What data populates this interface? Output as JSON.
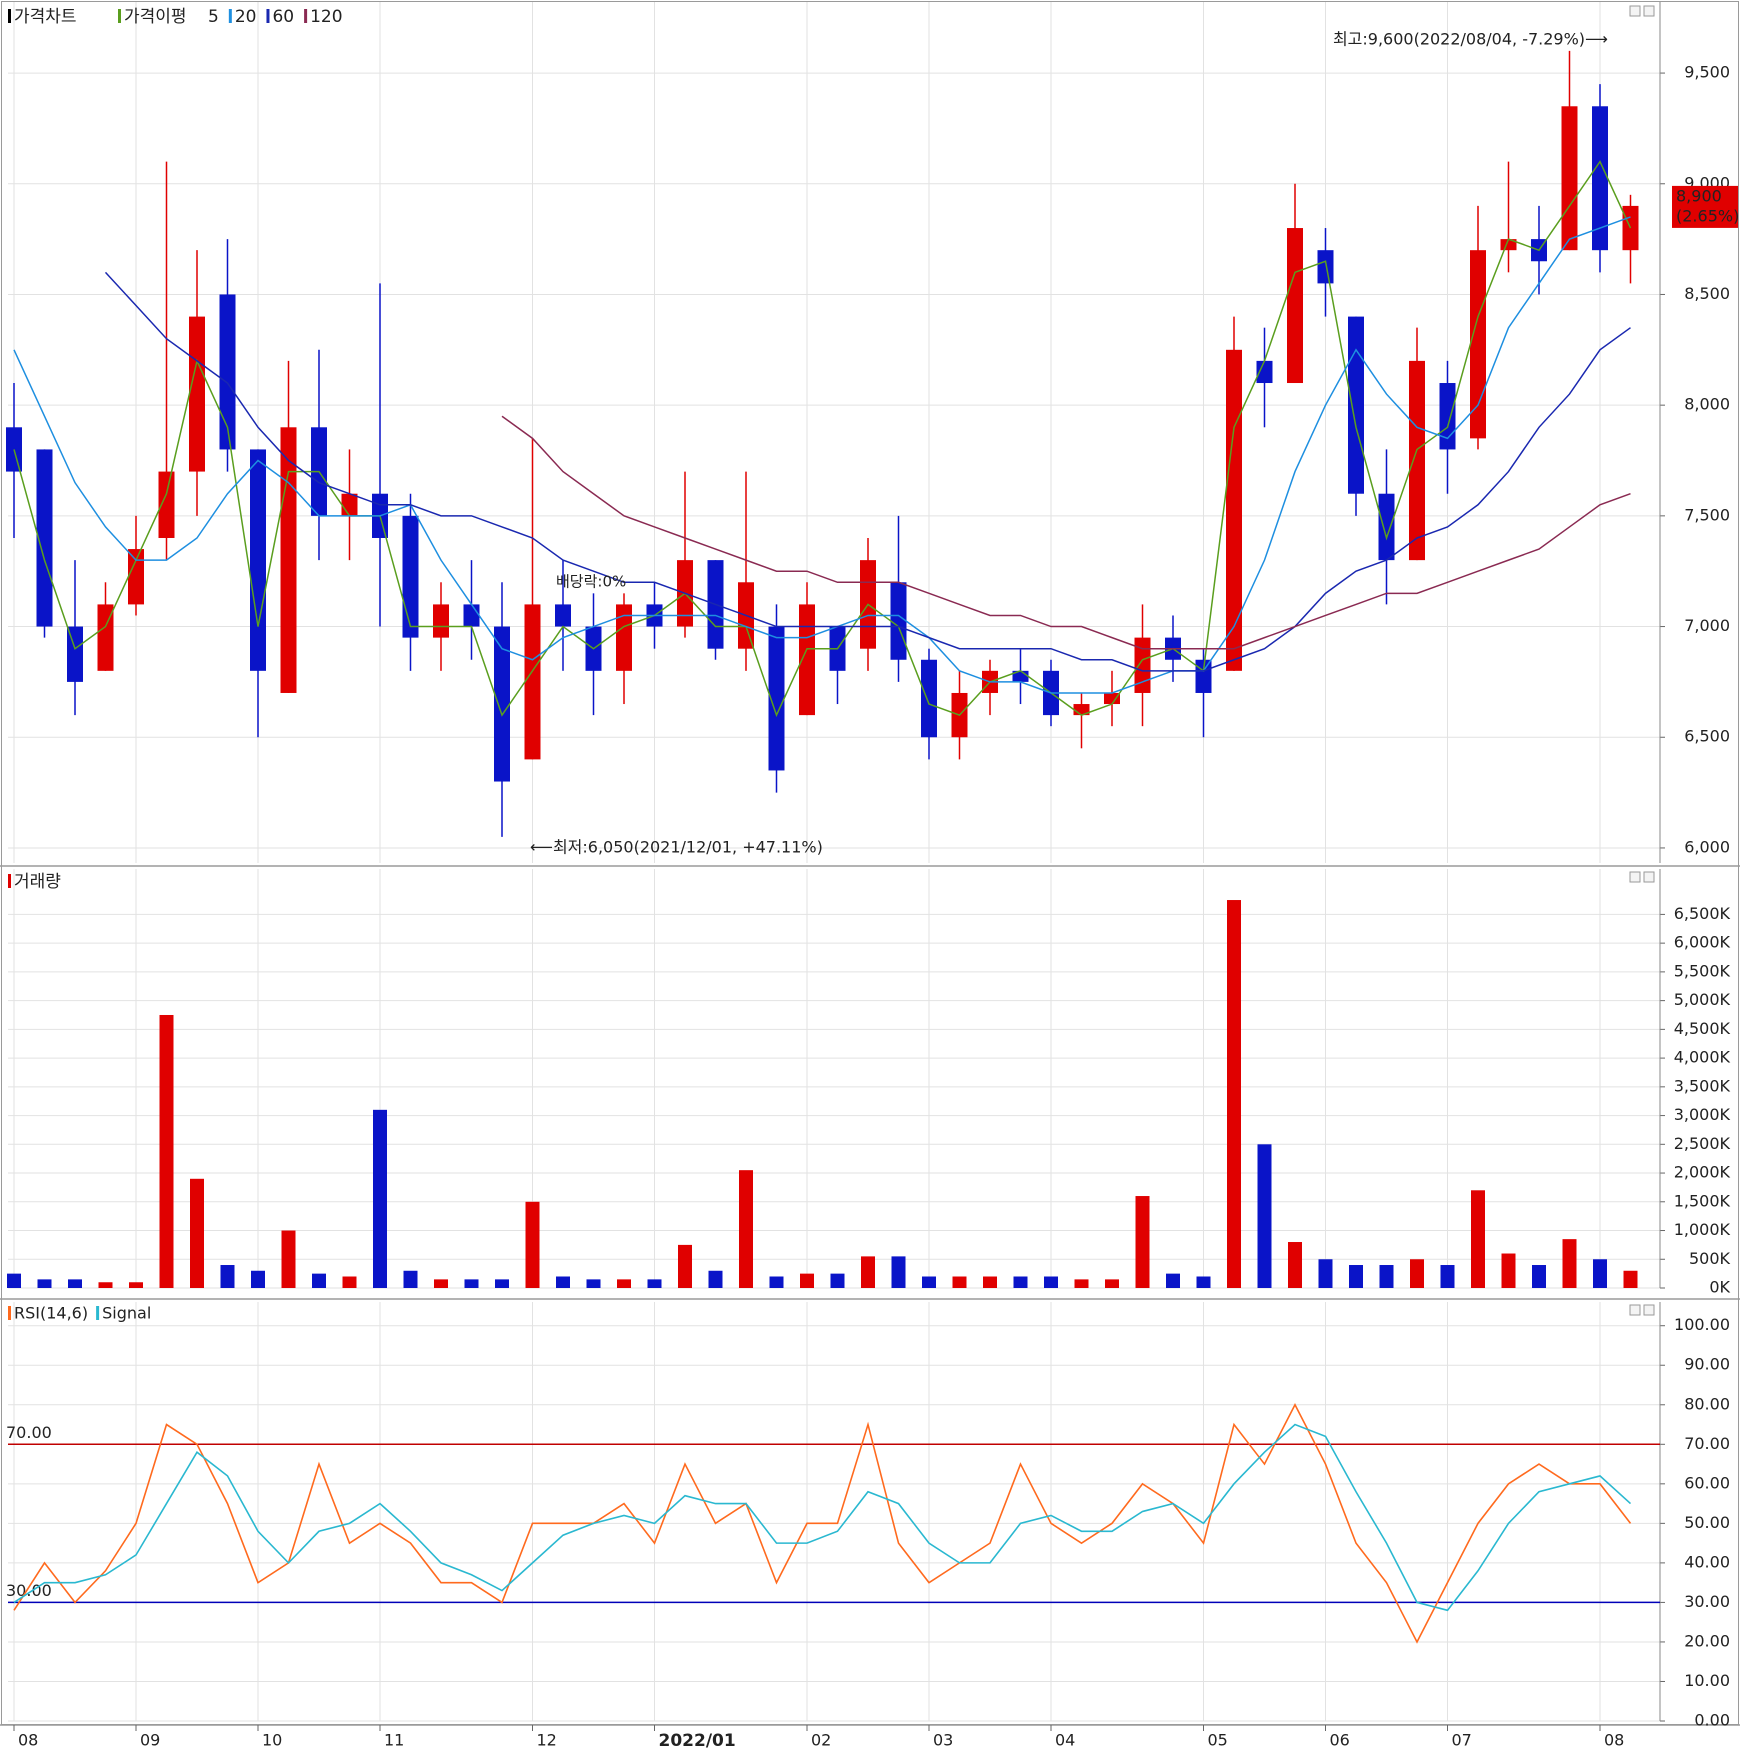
{
  "chart_data": [
    {
      "type": "candlestick",
      "title": "가격차트",
      "ma_title": "가격이평",
      "categories": [
        "08",
        null,
        null,
        null,
        "09",
        null,
        null,
        null,
        "10",
        null,
        null,
        null,
        "11",
        null,
        null,
        null,
        null,
        "12",
        null,
        null,
        null,
        "2022/01",
        null,
        null,
        null,
        null,
        "02",
        null,
        null,
        null,
        "03",
        null,
        null,
        null,
        "04",
        null,
        null,
        null,
        null,
        "05",
        null,
        null,
        null,
        "06",
        null,
        null,
        null,
        "07",
        null,
        null,
        null,
        null,
        "08",
        null
      ],
      "open": [
        7900,
        7800,
        7000,
        6800,
        7100,
        7400,
        7700,
        8500,
        7800,
        6700,
        7900,
        7500,
        7600,
        7500,
        6950,
        7100,
        7000,
        6400,
        7100,
        7000,
        6800,
        7100,
        7000,
        7300,
        6900,
        7000,
        6600,
        7000,
        6900,
        7200,
        6850,
        6500,
        6700,
        6800,
        6800,
        6600,
        6650,
        6700,
        6950,
        6850,
        6800,
        8200,
        8100,
        8700,
        8400,
        7600,
        7300,
        8100,
        7850,
        8700,
        8750,
        8700,
        9350,
        8700
      ],
      "high": [
        8100,
        7800,
        7300,
        7200,
        7500,
        9100,
        8700,
        8750,
        7800,
        8200,
        8250,
        7800,
        8550,
        7600,
        7200,
        7300,
        7200,
        7850,
        7300,
        7150,
        7150,
        7200,
        7700,
        7300,
        7700,
        7100,
        7200,
        7000,
        7400,
        7500,
        6900,
        6800,
        6850,
        6900,
        6850,
        6700,
        6800,
        7100,
        7050,
        6900,
        8400,
        8350,
        9000,
        8800,
        8400,
        7800,
        8350,
        8200,
        8900,
        9100,
        8900,
        9600,
        9450,
        8950
      ],
      "low": [
        7400,
        6950,
        6600,
        6800,
        7050,
        7300,
        7500,
        7700,
        6500,
        6700,
        7300,
        7300,
        7000,
        6800,
        6800,
        6850,
        6050,
        6400,
        6800,
        6600,
        6650,
        6900,
        6950,
        6850,
        6800,
        6250,
        6600,
        6650,
        6800,
        6750,
        6400,
        6400,
        6600,
        6650,
        6550,
        6450,
        6550,
        6550,
        6750,
        6500,
        6800,
        7900,
        8100,
        8400,
        7500,
        7100,
        7300,
        7600,
        7800,
        8600,
        8500,
        8700,
        8600,
        8550
      ],
      "close": [
        7700,
        7000,
        6750,
        7100,
        7350,
        7700,
        8400,
        7800,
        6800,
        7900,
        7500,
        7600,
        7400,
        6950,
        7100,
        7000,
        6300,
        7100,
        7000,
        6800,
        7100,
        7000,
        7300,
        6900,
        7200,
        6350,
        7100,
        6800,
        7300,
        6850,
        6500,
        6700,
        6800,
        6750,
        6600,
        6650,
        6700,
        6950,
        6850,
        6700,
        8250,
        8100,
        8800,
        8550,
        7600,
        7300,
        8200,
        7800,
        8700,
        8750,
        8650,
        9350,
        8700,
        8900
      ],
      "up_color": "#e00000",
      "down_color": "#0a14c8",
      "series": [
        {
          "name": "5",
          "color": "#5a9e1e",
          "values": [
            7800,
            7300,
            6900,
            7000,
            7300,
            7600,
            8200,
            7900,
            7000,
            7700,
            7700,
            7500,
            7500,
            7000,
            7000,
            7000,
            6600,
            6800,
            7000,
            6900,
            7000,
            7050,
            7150,
            7000,
            7000,
            6600,
            6900,
            6900,
            7100,
            7000,
            6650,
            6600,
            6750,
            6800,
            6700,
            6600,
            6650,
            6850,
            6900,
            6800,
            7900,
            8200,
            8600,
            8650,
            7900,
            7400,
            7800,
            7900,
            8400,
            8750,
            8700,
            8900,
            9100,
            8800
          ]
        },
        {
          "name": "20",
          "color": "#1e8fe0",
          "values": [
            8250,
            7950,
            7650,
            7450,
            7300,
            7300,
            7400,
            7600,
            7750,
            7650,
            7500,
            7500,
            7500,
            7550,
            7300,
            7100,
            6900,
            6850,
            6950,
            7000,
            7050,
            7050,
            7050,
            7050,
            7000,
            6950,
            6950,
            7000,
            7050,
            7050,
            6950,
            6800,
            6750,
            6750,
            6700,
            6700,
            6700,
            6750,
            6800,
            6800,
            7000,
            7300,
            7700,
            8000,
            8250,
            8050,
            7900,
            7850,
            8000,
            8350,
            8550,
            8750,
            8800,
            8850
          ]
        },
        {
          "name": "60",
          "color": "#1a28b0",
          "values": [
            null,
            null,
            null,
            8600,
            8450,
            8300,
            8200,
            8100,
            7900,
            7750,
            7650,
            7600,
            7550,
            7550,
            7500,
            7500,
            7450,
            7400,
            7300,
            7250,
            7200,
            7200,
            7150,
            7100,
            7050,
            7000,
            7000,
            7000,
            7000,
            7000,
            6950,
            6900,
            6900,
            6900,
            6900,
            6850,
            6850,
            6800,
            6800,
            6800,
            6850,
            6900,
            7000,
            7150,
            7250,
            7300,
            7400,
            7450,
            7550,
            7700,
            7900,
            8050,
            8250,
            8350
          ]
        },
        {
          "name": "120",
          "color": "#8a2a52",
          "values": [
            null,
            null,
            null,
            null,
            null,
            null,
            null,
            null,
            null,
            null,
            null,
            null,
            null,
            null,
            null,
            null,
            7950,
            7850,
            7700,
            7600,
            7500,
            7450,
            7400,
            7350,
            7300,
            7250,
            7250,
            7200,
            7200,
            7200,
            7150,
            7100,
            7050,
            7050,
            7000,
            7000,
            6950,
            6900,
            6900,
            6900,
            6900,
            6950,
            7000,
            7050,
            7100,
            7150,
            7150,
            7200,
            7250,
            7300,
            7350,
            7450,
            7550,
            7600
          ]
        }
      ],
      "ylim": [
        5932,
        9821
      ],
      "yticks": [
        {
          "value": 6000,
          "label": "6,000"
        },
        {
          "value": 6500,
          "label": "6,500"
        },
        {
          "value": 7000,
          "label": "7,000"
        },
        {
          "value": 7500,
          "label": "7,500"
        },
        {
          "value": 8000,
          "label": "8,000"
        },
        {
          "value": 8500,
          "label": "8,500"
        },
        {
          "value": 9000,
          "label": "9,000"
        },
        {
          "value": 9500,
          "label": "9,500"
        }
      ],
      "high_annotation": "최고:9,600(2022/08/04, -7.29%)⟶",
      "low_annotation": "⟵최저:6,050(2021/12/01, +47.11%)",
      "note": "배당락:0%",
      "last_price": {
        "value": 8900,
        "label": "8,900"
      },
      "last_change": "(2.65%)"
    },
    {
      "type": "bar",
      "title": "거래량",
      "values": [
        250,
        150,
        150,
        100,
        100,
        4750,
        1900,
        400,
        300,
        1000,
        250,
        200,
        3100,
        300,
        150,
        150,
        150,
        1500,
        200,
        150,
        150,
        150,
        750,
        300,
        2050,
        200,
        250,
        250,
        550,
        550,
        200,
        200,
        200,
        200,
        200,
        150,
        150,
        1600,
        250,
        200,
        6750,
        2500,
        800,
        500,
        400,
        400,
        500,
        400,
        1700,
        600,
        400,
        850,
        500,
        300
      ],
      "ylim": [
        0,
        7290
      ],
      "yticks": [
        {
          "value": 0,
          "label": "0K"
        },
        {
          "value": 500,
          "label": "500K"
        },
        {
          "value": 1000,
          "label": "1,000K"
        },
        {
          "value": 1500,
          "label": "1,500K"
        },
        {
          "value": 2000,
          "label": "2,000K"
        },
        {
          "value": 2500,
          "label": "2,500K"
        },
        {
          "value": 3000,
          "label": "3,000K"
        },
        {
          "value": 3500,
          "label": "3,500K"
        },
        {
          "value": 4000,
          "label": "4,000K"
        },
        {
          "value": 4500,
          "label": "4,500K"
        },
        {
          "value": 5000,
          "label": "5,000K"
        },
        {
          "value": 5500,
          "label": "5,500K"
        },
        {
          "value": 6000,
          "label": "6,000K"
        },
        {
          "value": 6500,
          "label": "6,500K"
        }
      ]
    },
    {
      "type": "line",
      "series": [
        {
          "name": "RSI(14,6)",
          "color": "#ff6a1e",
          "values": [
            28,
            40,
            30,
            38,
            50,
            75,
            70,
            55,
            35,
            40,
            65,
            45,
            50,
            45,
            35,
            35,
            30,
            50,
            50,
            50,
            55,
            45,
            65,
            50,
            55,
            35,
            50,
            50,
            75,
            45,
            35,
            40,
            45,
            65,
            50,
            45,
            50,
            60,
            55,
            45,
            75,
            65,
            80,
            65,
            45,
            35,
            20,
            35,
            50,
            60,
            65,
            60,
            60,
            50
          ]
        },
        {
          "name": "Signal",
          "color": "#2ab8d0",
          "values": [
            30,
            35,
            35,
            37,
            42,
            55,
            68,
            62,
            48,
            40,
            48,
            50,
            55,
            48,
            40,
            37,
            33,
            40,
            47,
            50,
            52,
            50,
            57,
            55,
            55,
            45,
            45,
            48,
            58,
            55,
            45,
            40,
            40,
            50,
            52,
            48,
            48,
            53,
            55,
            50,
            60,
            68,
            75,
            72,
            58,
            45,
            30,
            28,
            38,
            50,
            58,
            60,
            62,
            55
          ]
        }
      ],
      "reference_lines": [
        {
          "value": 70,
          "label": "70.00",
          "color": "#c00000"
        },
        {
          "value": 30,
          "label": "30.00",
          "color": "#0000b8"
        }
      ],
      "ylim": [
        0,
        106
      ],
      "yticks": [
        {
          "value": 0,
          "label": "0.00"
        },
        {
          "value": 10,
          "label": "10.00"
        },
        {
          "value": 20,
          "label": "20.00"
        },
        {
          "value": 30,
          "label": "30.00"
        },
        {
          "value": 40,
          "label": "40.00"
        },
        {
          "value": 50,
          "label": "50.00"
        },
        {
          "value": 60,
          "label": "60.00"
        },
        {
          "value": 70,
          "label": "70.00"
        },
        {
          "value": 80,
          "label": "80.00"
        },
        {
          "value": 90,
          "label": "90.00"
        },
        {
          "value": 100,
          "label": "100.00"
        }
      ]
    }
  ]
}
